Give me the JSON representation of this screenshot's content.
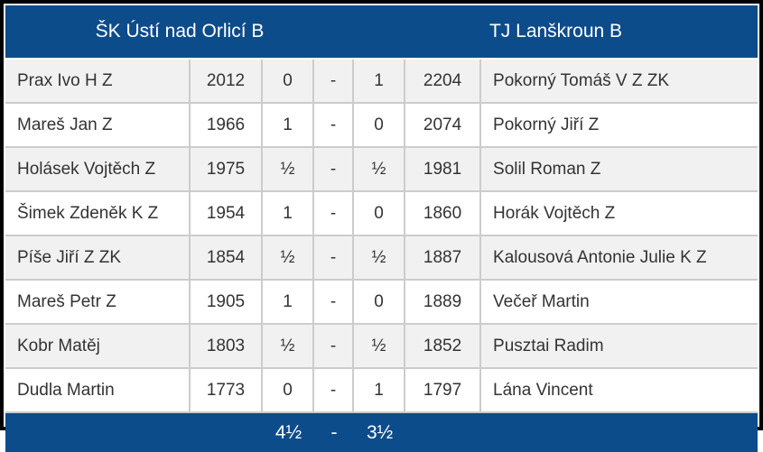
{
  "teams": {
    "home": "ŠK Ústí nad Orlicí B",
    "away": "TJ Lanškroun B"
  },
  "rows": [
    {
      "home_name": "Prax Ivo H Z",
      "home_rating": "2012",
      "home_score": "0",
      "separator": "-",
      "away_score": "1",
      "away_rating": "2204",
      "away_name": "Pokorný Tomáš V Z ZK"
    },
    {
      "home_name": "Mareš Jan Z",
      "home_rating": "1966",
      "home_score": "1",
      "separator": "-",
      "away_score": "0",
      "away_rating": "2074",
      "away_name": "Pokorný Jiří Z"
    },
    {
      "home_name": "Holásek Vojtěch Z",
      "home_rating": "1975",
      "home_score": "½",
      "separator": "-",
      "away_score": "½",
      "away_rating": "1981",
      "away_name": "Solil Roman Z"
    },
    {
      "home_name": "Šimek Zdeněk K Z",
      "home_rating": "1954",
      "home_score": "1",
      "separator": "-",
      "away_score": "0",
      "away_rating": "1860",
      "away_name": "Horák Vojtěch Z"
    },
    {
      "home_name": "Píše Jiří Z ZK",
      "home_rating": "1854",
      "home_score": "½",
      "separator": "-",
      "away_score": "½",
      "away_rating": "1887",
      "away_name": "Kalousová Antonie Julie K Z"
    },
    {
      "home_name": "Mareš Petr Z",
      "home_rating": "1905",
      "home_score": "1",
      "separator": "-",
      "away_score": "0",
      "away_rating": "1889",
      "away_name": "Večeř Martin"
    },
    {
      "home_name": "Kobr Matěj",
      "home_rating": "1803",
      "home_score": "½",
      "separator": "-",
      "away_score": "½",
      "away_rating": "1852",
      "away_name": "Pusztai Radim"
    },
    {
      "home_name": "Dudla Martin",
      "home_rating": "1773",
      "home_score": "0",
      "separator": "-",
      "away_score": "1",
      "away_rating": "1797",
      "away_name": "Lána Vincent"
    }
  ],
  "totals": {
    "home": "4½",
    "separator": "-",
    "away": "3½"
  },
  "colors": {
    "header_bg": "#0d4c8b",
    "header_text": "#ffffff",
    "row_alt_bg": "#f1f1f1",
    "row_bg": "#ffffff",
    "divider": "#cccccc",
    "outer_border": "#000000",
    "body_text": "#333333"
  }
}
